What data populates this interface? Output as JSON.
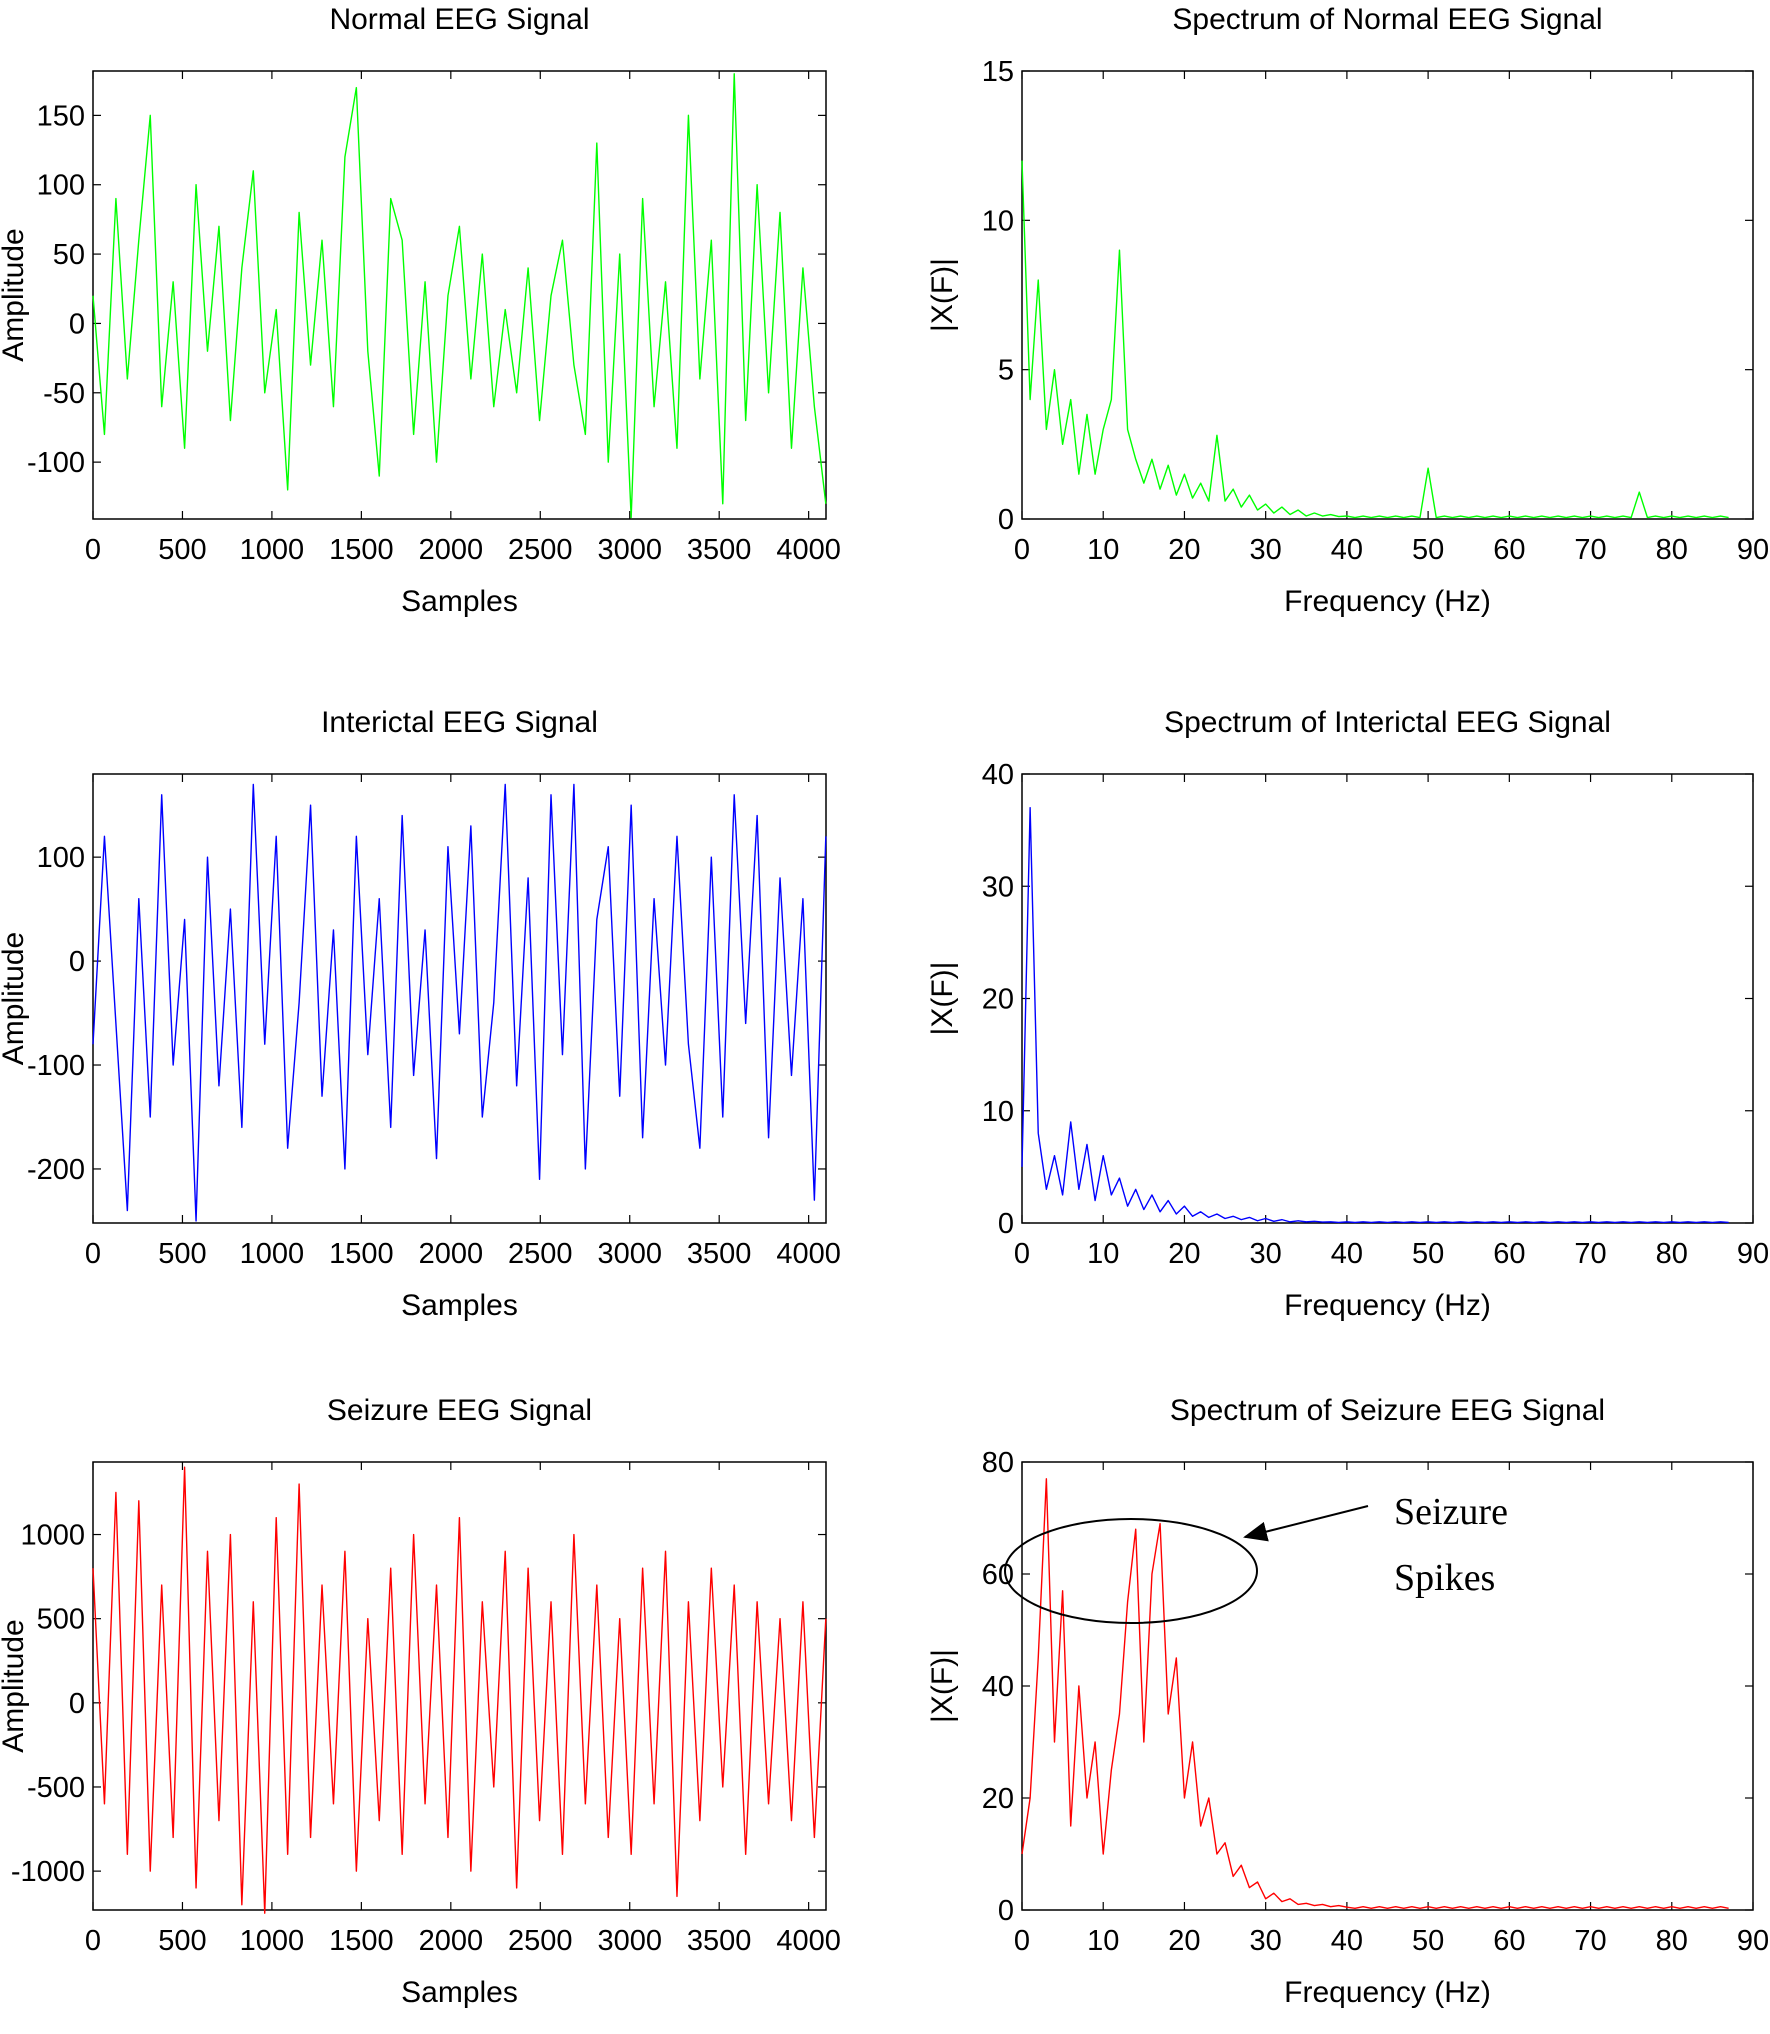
{
  "chart_data": [
    {
      "type": "line",
      "title": "Normal EEG Signal",
      "xlabel": "Samples",
      "ylabel": "Amplitude",
      "color": "#00ff00",
      "x": [
        0,
        64,
        128,
        192,
        256,
        320,
        384,
        448,
        512,
        576,
        640,
        704,
        768,
        832,
        896,
        960,
        1024,
        1088,
        1152,
        1216,
        1280,
        1344,
        1408,
        1472,
        1536,
        1600,
        1664,
        1728,
        1792,
        1856,
        1920,
        1984,
        2048,
        2112,
        2176,
        2240,
        2304,
        2368,
        2432,
        2496,
        2560,
        2624,
        2688,
        2752,
        2816,
        2880,
        2944,
        3008,
        3072,
        3136,
        3200,
        3264,
        3328,
        3392,
        3456,
        3520,
        3584,
        3648,
        3712,
        3776,
        3840,
        3904,
        3968,
        4032,
        4096
      ],
      "values": [
        20,
        -80,
        90,
        -40,
        60,
        150,
        -60,
        30,
        -90,
        100,
        -20,
        70,
        -70,
        40,
        110,
        -50,
        10,
        -120,
        80,
        -30,
        60,
        -60,
        120,
        170,
        -20,
        -110,
        90,
        60,
        -80,
        30,
        -100,
        20,
        70,
        -40,
        50,
        -60,
        10,
        -50,
        40,
        -70,
        20,
        60,
        -30,
        -80,
        130,
        -100,
        50,
        -140,
        90,
        -60,
        30,
        -90,
        150,
        -40,
        60,
        -130,
        180,
        -70,
        100,
        -50,
        80,
        -90,
        40,
        -60,
        -130
      ],
      "xlim": [
        0,
        4097
      ],
      "xticks": [
        0,
        500,
        1000,
        1500,
        2000,
        2500,
        3000,
        3500,
        4000
      ],
      "ylim": [
        -141,
        182
      ],
      "yticks": [
        -100,
        -50,
        0,
        50,
        100,
        150
      ]
    },
    {
      "type": "line",
      "title": "Spectrum of Normal EEG Signal",
      "xlabel": "Frequency (Hz)",
      "ylabel": "|X(F)|",
      "color": "#00ff00",
      "x": [
        0,
        1,
        2,
        3,
        4,
        5,
        6,
        7,
        8,
        9,
        10,
        11,
        12,
        13,
        14,
        15,
        16,
        17,
        18,
        19,
        20,
        21,
        22,
        23,
        24,
        25,
        26,
        27,
        28,
        29,
        30,
        31,
        32,
        33,
        34,
        35,
        36,
        37,
        38,
        39,
        40,
        41,
        42,
        43,
        44,
        45,
        46,
        47,
        48,
        49,
        50,
        51,
        52,
        53,
        54,
        55,
        56,
        57,
        58,
        59,
        60,
        61,
        62,
        63,
        64,
        65,
        66,
        67,
        68,
        69,
        70,
        71,
        72,
        73,
        74,
        75,
        76,
        77,
        78,
        79,
        80,
        81,
        82,
        83,
        84,
        85,
        86,
        87
      ],
      "values": [
        12,
        4,
        8,
        3,
        5,
        2.5,
        4,
        1.5,
        3.5,
        1.5,
        3,
        4,
        9,
        3,
        2,
        1.2,
        2,
        1,
        1.8,
        0.8,
        1.5,
        0.7,
        1.2,
        0.6,
        2.8,
        0.6,
        1,
        0.4,
        0.8,
        0.3,
        0.5,
        0.2,
        0.4,
        0.15,
        0.3,
        0.1,
        0.2,
        0.1,
        0.15,
        0.08,
        0.1,
        0.05,
        0.1,
        0.05,
        0.1,
        0.05,
        0.1,
        0.05,
        0.1,
        0.05,
        1.7,
        0.05,
        0.1,
        0.05,
        0.1,
        0.05,
        0.1,
        0.05,
        0.1,
        0.05,
        0.1,
        0.05,
        0.1,
        0.05,
        0.1,
        0.05,
        0.1,
        0.05,
        0.1,
        0.05,
        0.1,
        0.05,
        0.1,
        0.05,
        0.1,
        0.05,
        0.9,
        0.05,
        0.1,
        0.05,
        0.1,
        0.05,
        0.1,
        0.05,
        0.1,
        0.05,
        0.1,
        0.05
      ],
      "xlim": [
        0,
        90
      ],
      "xticks": [
        0,
        10,
        20,
        30,
        40,
        50,
        60,
        70,
        80,
        90
      ],
      "ylim": [
        0,
        15
      ],
      "yticks": [
        0,
        5,
        10,
        15
      ]
    },
    {
      "type": "line",
      "title": "Interictal EEG Signal",
      "xlabel": "Samples",
      "ylabel": "Amplitude",
      "color": "#0000ff",
      "x": [
        0,
        64,
        128,
        192,
        256,
        320,
        384,
        448,
        512,
        576,
        640,
        704,
        768,
        832,
        896,
        960,
        1024,
        1088,
        1152,
        1216,
        1280,
        1344,
        1408,
        1472,
        1536,
        1600,
        1664,
        1728,
        1792,
        1856,
        1920,
        1984,
        2048,
        2112,
        2176,
        2240,
        2304,
        2368,
        2432,
        2496,
        2560,
        2624,
        2688,
        2752,
        2816,
        2880,
        2944,
        3008,
        3072,
        3136,
        3200,
        3264,
        3328,
        3392,
        3456,
        3520,
        3584,
        3648,
        3712,
        3776,
        3840,
        3904,
        3968,
        4032,
        4096
      ],
      "values": [
        -80,
        120,
        -60,
        -240,
        60,
        -150,
        160,
        -100,
        40,
        -250,
        100,
        -120,
        50,
        -160,
        170,
        -80,
        120,
        -180,
        -40,
        150,
        -130,
        30,
        -200,
        120,
        -90,
        60,
        -160,
        140,
        -110,
        30,
        -190,
        110,
        -70,
        130,
        -150,
        -40,
        170,
        -120,
        80,
        -210,
        160,
        -90,
        170,
        -200,
        40,
        110,
        -130,
        150,
        -170,
        60,
        -100,
        120,
        -80,
        -180,
        100,
        -150,
        160,
        -60,
        140,
        -170,
        80,
        -110,
        60,
        -230,
        120
      ],
      "xlim": [
        0,
        4097
      ],
      "xticks": [
        0,
        500,
        1000,
        1500,
        2000,
        2500,
        3000,
        3500,
        4000
      ],
      "ylim": [
        -252,
        180
      ],
      "yticks": [
        -200,
        -100,
        0,
        100
      ]
    },
    {
      "type": "line",
      "title": "Spectrum of Interictal EEG Signal",
      "xlabel": "Frequency (Hz)",
      "ylabel": "|X(F)|",
      "color": "#0000ff",
      "x": [
        0,
        1,
        2,
        3,
        4,
        5,
        6,
        7,
        8,
        9,
        10,
        11,
        12,
        13,
        14,
        15,
        16,
        17,
        18,
        19,
        20,
        21,
        22,
        23,
        24,
        25,
        26,
        27,
        28,
        29,
        30,
        31,
        32,
        33,
        34,
        35,
        36,
        37,
        38,
        39,
        40,
        41,
        42,
        43,
        44,
        45,
        46,
        47,
        48,
        49,
        50,
        51,
        52,
        53,
        54,
        55,
        56,
        57,
        58,
        59,
        60,
        61,
        62,
        63,
        64,
        65,
        66,
        67,
        68,
        69,
        70,
        71,
        72,
        73,
        74,
        75,
        76,
        77,
        78,
        79,
        80,
        81,
        82,
        83,
        84,
        85,
        86,
        87
      ],
      "values": [
        5,
        37,
        8,
        3,
        6,
        2.5,
        9,
        3,
        7,
        2,
        6,
        2.5,
        4,
        1.5,
        3,
        1.2,
        2.5,
        1,
        2,
        0.8,
        1.5,
        0.6,
        1,
        0.5,
        0.8,
        0.4,
        0.6,
        0.3,
        0.5,
        0.2,
        0.4,
        0.15,
        0.3,
        0.1,
        0.2,
        0.1,
        0.15,
        0.08,
        0.1,
        0.05,
        0.1,
        0.05,
        0.1,
        0.05,
        0.1,
        0.05,
        0.1,
        0.05,
        0.1,
        0.05,
        0.1,
        0.05,
        0.1,
        0.05,
        0.1,
        0.05,
        0.1,
        0.05,
        0.1,
        0.05,
        0.1,
        0.05,
        0.1,
        0.05,
        0.1,
        0.05,
        0.1,
        0.05,
        0.1,
        0.05,
        0.1,
        0.05,
        0.1,
        0.05,
        0.1,
        0.05,
        0.1,
        0.05,
        0.1,
        0.05,
        0.1,
        0.05,
        0.1,
        0.05,
        0.1,
        0.05,
        0.1,
        0.05
      ],
      "xlim": [
        0,
        90
      ],
      "xticks": [
        0,
        10,
        20,
        30,
        40,
        50,
        60,
        70,
        80,
        90
      ],
      "ylim": [
        0,
        40
      ],
      "yticks": [
        0,
        10,
        20,
        30,
        40
      ]
    },
    {
      "type": "line",
      "title": "Seizure EEG Signal",
      "xlabel": "Samples",
      "ylabel": "Amplitude",
      "color": "#ff0000",
      "x": [
        0,
        64,
        128,
        192,
        256,
        320,
        384,
        448,
        512,
        576,
        640,
        704,
        768,
        832,
        896,
        960,
        1024,
        1088,
        1152,
        1216,
        1280,
        1344,
        1408,
        1472,
        1536,
        1600,
        1664,
        1728,
        1792,
        1856,
        1920,
        1984,
        2048,
        2112,
        2176,
        2240,
        2304,
        2368,
        2432,
        2496,
        2560,
        2624,
        2688,
        2752,
        2816,
        2880,
        2944,
        3008,
        3072,
        3136,
        3200,
        3264,
        3328,
        3392,
        3456,
        3520,
        3584,
        3648,
        3712,
        3776,
        3840,
        3904,
        3968,
        4032,
        4096
      ],
      "values": [
        800,
        -600,
        1250,
        -900,
        1200,
        -1000,
        700,
        -800,
        1400,
        -1100,
        900,
        -700,
        1000,
        -1200,
        600,
        -1250,
        1100,
        -900,
        1300,
        -800,
        700,
        -600,
        900,
        -1000,
        500,
        -700,
        800,
        -900,
        1000,
        -600,
        700,
        -800,
        1100,
        -1000,
        600,
        -500,
        900,
        -1100,
        800,
        -700,
        600,
        -900,
        1000,
        -600,
        700,
        -800,
        500,
        -900,
        800,
        -600,
        900,
        -1150,
        600,
        -700,
        800,
        -500,
        700,
        -900,
        600,
        -600,
        500,
        -700,
        600,
        -800,
        500
      ],
      "xlim": [
        0,
        4097
      ],
      "xticks": [
        0,
        500,
        1000,
        1500,
        2000,
        2500,
        3000,
        3500,
        4000
      ],
      "ylim": [
        -1231,
        1431
      ],
      "yticks": [
        -1000,
        -500,
        0,
        500,
        1000
      ]
    },
    {
      "type": "line",
      "title": "Spectrum of Seizure EEG Signal",
      "xlabel": "Frequency (Hz)",
      "ylabel": "|X(F)|",
      "color": "#ff0000",
      "annotation": [
        "Seizure",
        "Spikes"
      ],
      "x": [
        0,
        1,
        2,
        3,
        4,
        5,
        6,
        7,
        8,
        9,
        10,
        11,
        12,
        13,
        14,
        15,
        16,
        17,
        18,
        19,
        20,
        21,
        22,
        23,
        24,
        25,
        26,
        27,
        28,
        29,
        30,
        31,
        32,
        33,
        34,
        35,
        36,
        37,
        38,
        39,
        40,
        41,
        42,
        43,
        44,
        45,
        46,
        47,
        48,
        49,
        50,
        51,
        52,
        53,
        54,
        55,
        56,
        57,
        58,
        59,
        60,
        61,
        62,
        63,
        64,
        65,
        66,
        67,
        68,
        69,
        70,
        71,
        72,
        73,
        74,
        75,
        76,
        77,
        78,
        79,
        80,
        81,
        82,
        83,
        84,
        85,
        86,
        87
      ],
      "values": [
        10,
        20,
        45,
        77,
        30,
        57,
        15,
        40,
        20,
        30,
        10,
        25,
        35,
        55,
        68,
        30,
        60,
        69,
        35,
        45,
        20,
        30,
        15,
        20,
        10,
        12,
        6,
        8,
        4,
        5,
        2,
        3,
        1.5,
        2,
        1,
        1.2,
        0.8,
        1,
        0.6,
        0.8,
        0.5,
        0.3,
        0.6,
        0.3,
        0.6,
        0.3,
        0.6,
        0.3,
        0.6,
        0.3,
        0.6,
        0.3,
        0.6,
        0.3,
        0.6,
        0.3,
        0.6,
        0.3,
        0.6,
        0.3,
        0.6,
        0.3,
        0.6,
        0.3,
        0.6,
        0.3,
        0.6,
        0.3,
        0.6,
        0.3,
        0.6,
        0.3,
        0.6,
        0.3,
        0.6,
        0.3,
        0.6,
        0.3,
        0.6,
        0.3,
        0.6,
        0.3,
        0.6,
        0.3,
        0.6,
        0.3,
        0.6,
        0.3
      ],
      "xlim": [
        0,
        90
      ],
      "xticks": [
        0,
        10,
        20,
        30,
        40,
        50,
        60,
        70,
        80,
        90
      ],
      "ylim": [
        0,
        80
      ],
      "yticks": [
        0,
        20,
        40,
        60,
        80
      ]
    }
  ]
}
